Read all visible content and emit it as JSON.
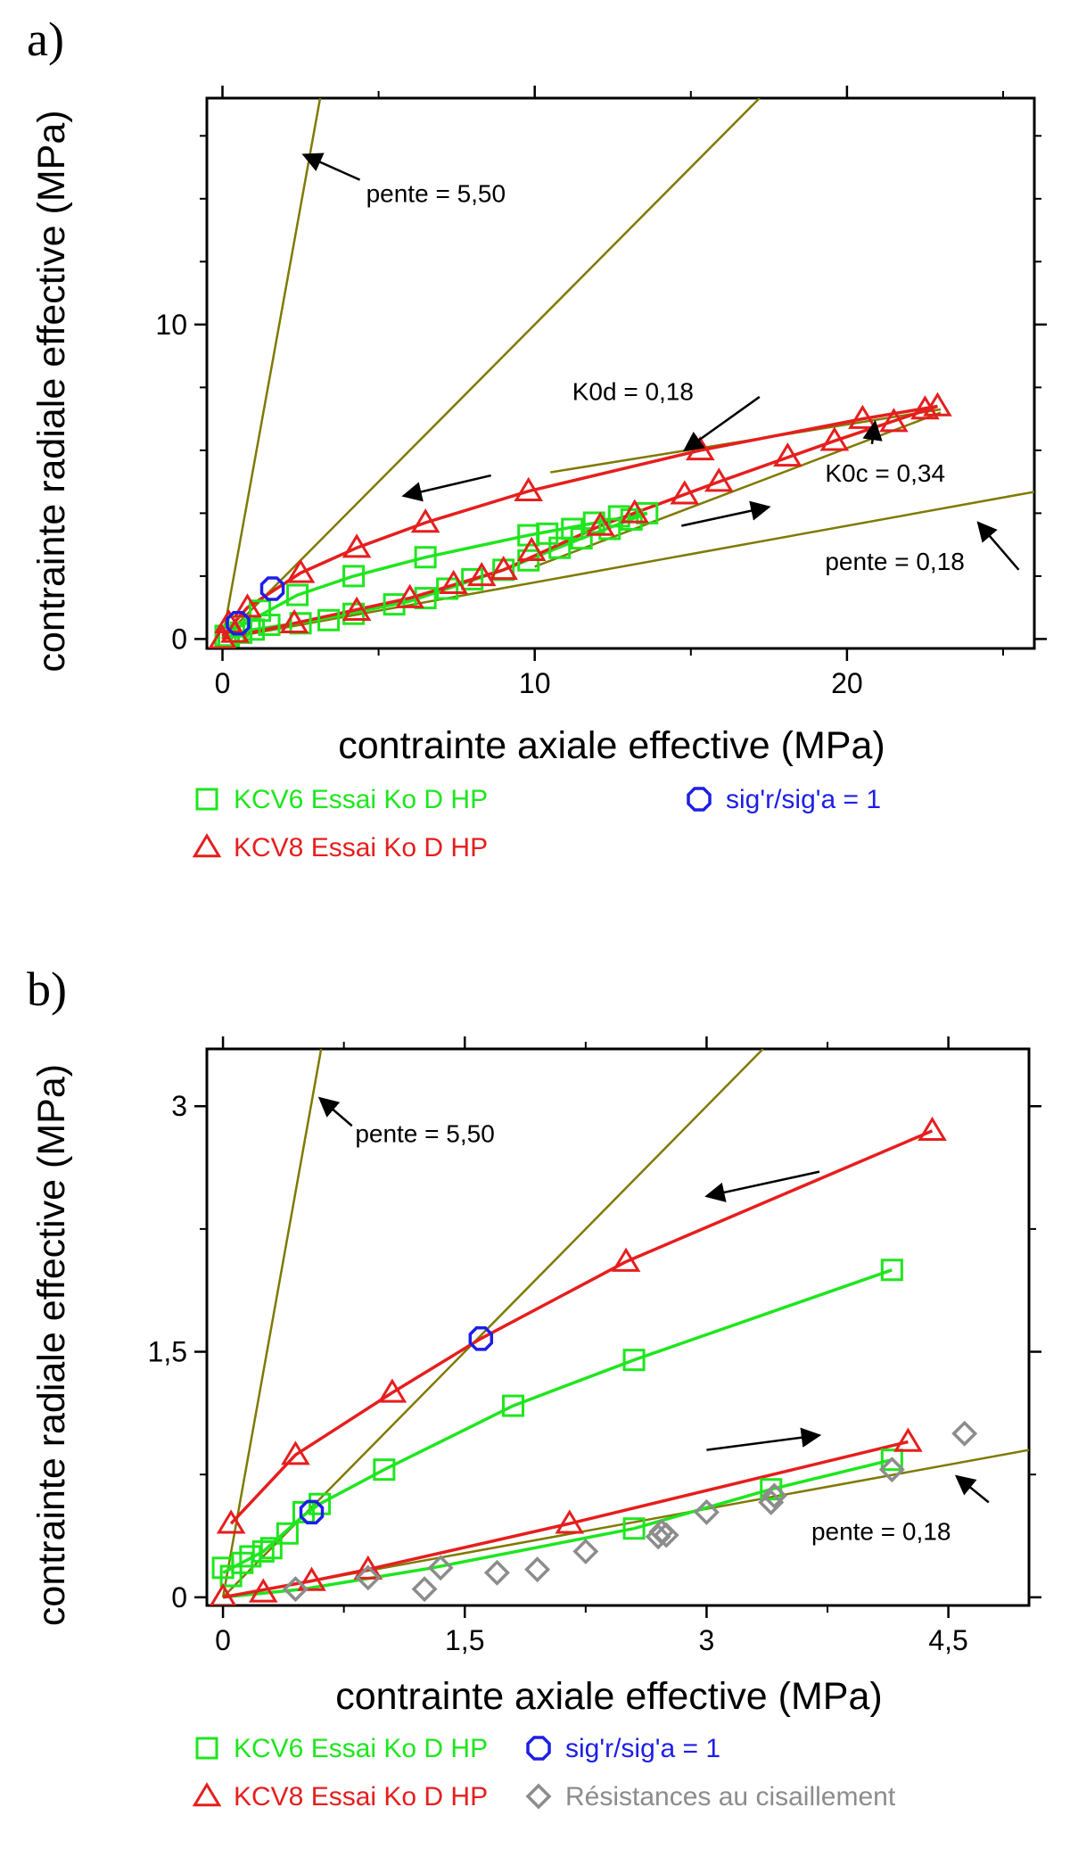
{
  "chart_data": [
    {
      "panel_label": "a)",
      "type": "scatter",
      "xlabel": "contrainte axiale effective (MPa)",
      "ylabel": "contrainte radiale effective (MPa)",
      "xlim": [
        -0.5,
        26
      ],
      "ylim": [
        -0.3,
        17.2
      ],
      "xticks": [
        {
          "v": 0,
          "label": "0"
        },
        {
          "v": 10,
          "label": "10"
        },
        {
          "v": 20,
          "label": "20"
        }
      ],
      "yticks": [
        {
          "v": 0,
          "label": "0"
        },
        {
          "v": 10,
          "label": "10"
        }
      ],
      "minor_x": [
        5,
        15,
        25
      ],
      "minor_y": [
        2,
        4,
        6,
        8,
        12,
        14,
        16
      ],
      "ref_lines": [
        {
          "slope": 5.5,
          "color": "#7f7a00"
        },
        {
          "slope": 1.0,
          "color": "#7f7a00"
        },
        {
          "slope": 0.18,
          "color": "#7f7a00"
        }
      ],
      "segments": [
        {
          "from": [
            10.5,
            5.3
          ],
          "to": [
            23.0,
            7.3
          ],
          "color": "#7f7a00"
        },
        {
          "from": [
            10.0,
            2.3
          ],
          "to": [
            23.0,
            7.2
          ],
          "color": "#7f7a00"
        }
      ],
      "series": [
        {
          "name": "KCV6  Essai Ko D HP",
          "marker": "square",
          "color": "#1ee61e",
          "points": [
            [
              0.2,
              0.1
            ],
            [
              0.6,
              0.2
            ],
            [
              1.0,
              0.3
            ],
            [
              1.5,
              0.45
            ],
            [
              2.5,
              0.5
            ],
            [
              3.4,
              0.6
            ],
            [
              4.2,
              0.8
            ],
            [
              5.5,
              1.1
            ],
            [
              6.5,
              1.3
            ],
            [
              7.2,
              1.6
            ],
            [
              8.0,
              1.9
            ],
            [
              9.0,
              2.2
            ],
            [
              9.8,
              2.5
            ],
            [
              10.8,
              2.9
            ],
            [
              11.5,
              3.2
            ],
            [
              12.4,
              3.5
            ],
            [
              13.1,
              3.8
            ],
            [
              13.6,
              4.0
            ],
            [
              12.7,
              3.9
            ],
            [
              11.9,
              3.7
            ],
            [
              11.2,
              3.5
            ],
            [
              10.4,
              3.35
            ],
            [
              9.8,
              3.3
            ],
            [
              6.5,
              2.6
            ],
            [
              4.2,
              2.0
            ],
            [
              2.4,
              1.4
            ],
            [
              1.2,
              0.9
            ],
            [
              0.5,
              0.4
            ],
            [
              0.1,
              0.1
            ]
          ],
          "lines": [
            [
              [
                0.0,
                0.0
              ],
              [
                1.0,
                0.3
              ],
              [
                3.0,
                0.6
              ],
              [
                6.0,
                1.2
              ],
              [
                9.0,
                2.2
              ],
              [
                11.5,
                3.2
              ],
              [
                13.6,
                4.0
              ]
            ],
            [
              [
                13.6,
                4.0
              ],
              [
                9.8,
                3.3
              ],
              [
                6.5,
                2.6
              ],
              [
                4.2,
                2.0
              ],
              [
                2.4,
                1.4
              ],
              [
                0.0,
                0.1
              ]
            ]
          ]
        },
        {
          "name": "KCV8  Essai Ko D HP",
          "marker": "triangle",
          "color": "#e61e1e",
          "points": [
            [
              0.0,
              0.0
            ],
            [
              0.4,
              0.2
            ],
            [
              2.3,
              0.5
            ],
            [
              4.3,
              0.9
            ],
            [
              6.0,
              1.3
            ],
            [
              7.4,
              1.75
            ],
            [
              8.3,
              2.0
            ],
            [
              9.0,
              2.2
            ],
            [
              9.9,
              2.8
            ],
            [
              12.1,
              3.6
            ],
            [
              13.2,
              4.0
            ],
            [
              14.8,
              4.6
            ],
            [
              15.9,
              5.0
            ],
            [
              18.1,
              5.8
            ],
            [
              19.6,
              6.3
            ],
            [
              21.5,
              6.9
            ],
            [
              22.5,
              7.3
            ],
            [
              22.9,
              7.4
            ],
            [
              20.5,
              7.0
            ],
            [
              15.3,
              6.0
            ],
            [
              9.8,
              4.7
            ],
            [
              6.5,
              3.7
            ],
            [
              4.3,
              2.9
            ],
            [
              2.5,
              2.1
            ],
            [
              0.8,
              1.0
            ],
            [
              0.2,
              0.5
            ]
          ],
          "lines": [
            [
              [
                0.0,
                0.0
              ],
              [
                2.3,
                0.5
              ],
              [
                6.0,
                1.3
              ],
              [
                9.0,
                2.2
              ],
              [
                12.1,
                3.6
              ],
              [
                15.9,
                5.0
              ],
              [
                19.6,
                6.3
              ],
              [
                22.9,
                7.4
              ]
            ],
            [
              [
                22.9,
                7.4
              ],
              [
                20.5,
                7.0
              ],
              [
                15.3,
                6.0
              ],
              [
                9.8,
                4.7
              ],
              [
                6.5,
                3.7
              ],
              [
                4.3,
                2.9
              ],
              [
                2.5,
                2.1
              ],
              [
                0.8,
                1.0
              ],
              [
                0.0,
                0.1
              ]
            ]
          ]
        },
        {
          "name": "sig'r/sig'a = 1",
          "marker": "octagon",
          "color": "#1e1ee6",
          "points": [
            [
              1.6,
              1.6
            ],
            [
              0.5,
              0.5
            ]
          ]
        }
      ],
      "arrows": [
        {
          "from": [
            8.6,
            5.2
          ],
          "to": [
            5.8,
            4.55
          ]
        },
        {
          "from": [
            14.7,
            3.6
          ],
          "to": [
            17.5,
            4.2
          ]
        },
        {
          "from": [
            17.2,
            7.7
          ],
          "to": [
            14.8,
            6.0
          ]
        },
        {
          "from": [
            20.8,
            6.2
          ],
          "to": [
            20.9,
            6.9
          ]
        },
        {
          "from": [
            25.5,
            2.2
          ],
          "to": [
            24.2,
            3.7
          ]
        },
        {
          "from": [
            4.4,
            14.6
          ],
          "to": [
            2.6,
            15.4
          ]
        }
      ],
      "annotations": [
        {
          "text": "pente = 5,50",
          "at": [
            4.6,
            13.9
          ],
          "anchor": "start"
        },
        {
          "text": "K0d = 0,18",
          "at": [
            11.2,
            7.6
          ],
          "anchor": "start"
        },
        {
          "text": "K0c = 0,34",
          "at": [
            19.3,
            5.0
          ],
          "anchor": "start"
        },
        {
          "text": "pente = 0,18",
          "at": [
            19.3,
            2.2
          ],
          "anchor": "start"
        }
      ]
    },
    {
      "panel_label": "b)",
      "type": "scatter",
      "xlabel": "contrainte axiale effective (MPa)",
      "ylabel": "contrainte radiale effective (MPa)",
      "xlim": [
        -0.1,
        5.0
      ],
      "ylim": [
        -0.05,
        3.35
      ],
      "xticks": [
        {
          "v": 0,
          "label": "0"
        },
        {
          "v": 1.5,
          "label": "1,5"
        },
        {
          "v": 3,
          "label": "3"
        },
        {
          "v": 4.5,
          "label": "4,5"
        }
      ],
      "yticks": [
        {
          "v": 0,
          "label": "0"
        },
        {
          "v": 1.5,
          "label": "1,5"
        },
        {
          "v": 3,
          "label": "3"
        }
      ],
      "minor_x": [
        0.75,
        2.25,
        3.75
      ],
      "minor_y": [
        0.75,
        2.25
      ],
      "ref_lines": [
        {
          "slope": 5.5,
          "color": "#7f7a00"
        },
        {
          "slope": 1.0,
          "color": "#7f7a00"
        },
        {
          "slope": 0.18,
          "color": "#7f7a00"
        }
      ],
      "segments": [],
      "series": [
        {
          "name": "KCV6  Essai Ko D HP",
          "marker": "square",
          "color": "#1ee61e",
          "points": [
            [
              0.0,
              0.18
            ],
            [
              0.05,
              0.13
            ],
            [
              0.12,
              0.21
            ],
            [
              0.17,
              0.25
            ],
            [
              0.25,
              0.28
            ],
            [
              0.3,
              0.3
            ],
            [
              0.4,
              0.39
            ],
            [
              0.5,
              0.52
            ],
            [
              0.6,
              0.57
            ],
            [
              1.0,
              0.78
            ],
            [
              1.8,
              1.17
            ],
            [
              2.55,
              1.45
            ],
            [
              4.15,
              2.0
            ],
            [
              4.15,
              0.84
            ],
            [
              3.4,
              0.66
            ],
            [
              2.55,
              0.42
            ]
          ],
          "lines": [
            [
              [
                0.0,
                0.15
              ],
              [
                0.25,
                0.28
              ],
              [
                0.5,
                0.5
              ],
              [
                0.6,
                0.57
              ],
              [
                1.0,
                0.78
              ],
              [
                1.8,
                1.17
              ],
              [
                2.55,
                1.45
              ],
              [
                4.15,
                2.0
              ]
            ],
            [
              [
                0.0,
                0.0
              ],
              [
                0.5,
                0.05
              ],
              [
                1.3,
                0.18
              ],
              [
                2.55,
                0.42
              ],
              [
                3.4,
                0.66
              ],
              [
                4.15,
                0.84
              ]
            ]
          ]
        },
        {
          "name": "KCV8  Essai Ko D HP",
          "marker": "triangle",
          "color": "#e61e1e",
          "points": [
            [
              0.0,
              0.0
            ],
            [
              0.25,
              0.03
            ],
            [
              0.55,
              0.1
            ],
            [
              0.9,
              0.17
            ],
            [
              2.15,
              0.45
            ],
            [
              4.25,
              0.95
            ],
            [
              4.4,
              2.85
            ],
            [
              2.5,
              2.05
            ],
            [
              1.05,
              1.25
            ],
            [
              0.45,
              0.87
            ],
            [
              0.05,
              0.45
            ]
          ],
          "lines": [
            [
              [
                0.0,
                0.0
              ],
              [
                0.55,
                0.1
              ],
              [
                0.9,
                0.17
              ],
              [
                2.15,
                0.45
              ],
              [
                4.25,
                0.95
              ]
            ],
            [
              [
                4.4,
                2.85
              ],
              [
                2.5,
                2.05
              ],
              [
                1.6,
                1.58
              ],
              [
                1.05,
                1.25
              ],
              [
                0.45,
                0.87
              ],
              [
                0.05,
                0.45
              ]
            ]
          ]
        },
        {
          "name": "sig'r/sig'a = 1",
          "marker": "octagon",
          "color": "#1e1ee6",
          "points": [
            [
              1.6,
              1.58
            ],
            [
              0.55,
              0.52
            ]
          ]
        },
        {
          "name": "Résistances au cisaillement",
          "marker": "diamond",
          "color": "#8c8c8c",
          "points": [
            [
              0.45,
              0.05
            ],
            [
              0.9,
              0.12
            ],
            [
              1.25,
              0.05
            ],
            [
              1.35,
              0.18
            ],
            [
              1.7,
              0.15
            ],
            [
              1.95,
              0.17
            ],
            [
              2.25,
              0.28
            ],
            [
              2.7,
              0.37
            ],
            [
              2.75,
              0.38
            ],
            [
              2.72,
              0.4
            ],
            [
              3.0,
              0.52
            ],
            [
              3.4,
              0.58
            ],
            [
              3.42,
              0.62
            ],
            [
              4.15,
              0.78
            ],
            [
              4.6,
              1.0
            ]
          ],
          "lines": []
        }
      ],
      "arrows": [
        {
          "from": [
            3.7,
            2.6
          ],
          "to": [
            3.0,
            2.45
          ]
        },
        {
          "from": [
            3.0,
            0.9
          ],
          "to": [
            3.7,
            0.99
          ]
        },
        {
          "from": [
            4.75,
            0.58
          ],
          "to": [
            4.55,
            0.74
          ]
        },
        {
          "from": [
            0.8,
            2.88
          ],
          "to": [
            0.6,
            3.05
          ]
        }
      ],
      "annotations": [
        {
          "text": "pente = 5,50",
          "at": [
            0.82,
            2.78
          ],
          "anchor": "start"
        },
        {
          "text": "pente = 0,18",
          "at": [
            3.65,
            0.35
          ],
          "anchor": "start"
        }
      ]
    }
  ],
  "legends": [
    {
      "items": [
        {
          "marker": "square",
          "color": "#1ee61e",
          "text": "KCV6  Essai Ko D HP"
        },
        {
          "marker": "triangle",
          "color": "#e61e1e",
          "text": "KCV8  Essai Ko D HP"
        },
        {
          "marker": "octagon",
          "color": "#1e1ee6",
          "text": "sig'r/sig'a = 1"
        }
      ]
    },
    {
      "items": [
        {
          "marker": "square",
          "color": "#1ee61e",
          "text": "KCV6  Essai Ko D HP"
        },
        {
          "marker": "triangle",
          "color": "#e61e1e",
          "text": "KCV8  Essai Ko D HP"
        },
        {
          "marker": "octagon",
          "color": "#1e1ee6",
          "text": "sig'r/sig'a = 1"
        },
        {
          "marker": "diamond",
          "color": "#8c8c8c",
          "text": "Résistances au cisaillement"
        }
      ]
    }
  ]
}
